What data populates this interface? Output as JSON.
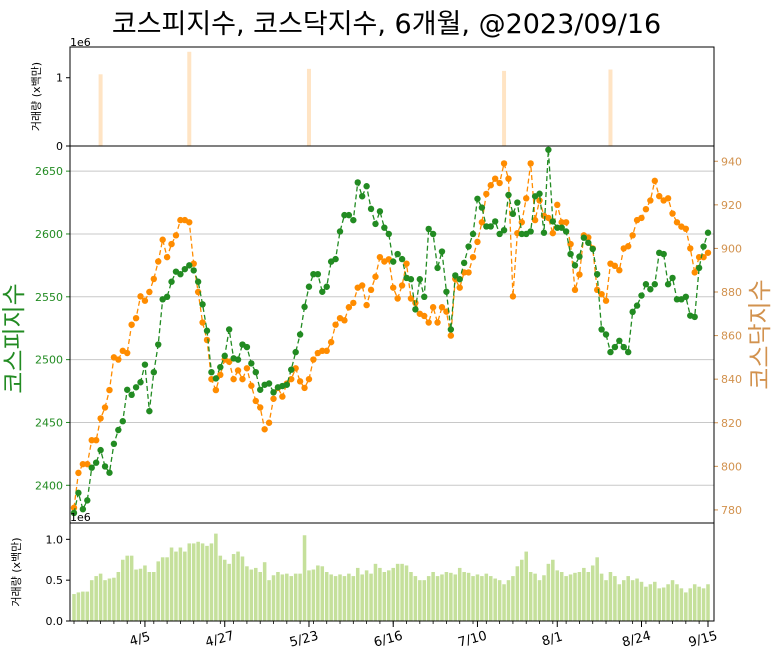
{
  "title": "코스피지수, 코스닥지수, 6개월, @2023/09/16",
  "colors": {
    "kospi": "#228B22",
    "kosdaq": "#FF8C00",
    "kosdaq_axis": "#D2924E",
    "vol_top": "#FFE4C4",
    "vol_bottom": "#C5E09B",
    "grid": "#C8C8C8"
  },
  "chart_data": [
    {
      "type": "bar",
      "panel": "top-volume",
      "ylabel": "거래량 (x백만)",
      "offset_label": "1e6",
      "ylim": [
        0,
        1.45
      ],
      "yticks": [
        0,
        1
      ],
      "x": [
        6,
        26,
        53,
        97,
        121
      ],
      "values": [
        1.05,
        1.38,
        1.13,
        1.1,
        1.12
      ]
    },
    {
      "type": "line",
      "panel": "main",
      "ylabel_left": "코스피지수",
      "ylabel_right": "코스닥지수",
      "ylim_left": [
        2370,
        2670
      ],
      "ylim_right": [
        774,
        947
      ],
      "yticks_left": [
        2400,
        2450,
        2500,
        2550,
        2600,
        2650
      ],
      "yticks_right": [
        780,
        800,
        820,
        840,
        860,
        880,
        900,
        920,
        940
      ],
      "grid": true,
      "series": [
        {
          "name": "코스피지수",
          "axis": "left",
          "values": [
            2378,
            2394,
            2381,
            2388,
            2414,
            2418,
            2428,
            2415,
            2410,
            2433,
            2444,
            2451,
            2476,
            2472,
            2478,
            2482,
            2496,
            2459,
            2490,
            2512,
            2548,
            2550,
            2562,
            2570,
            2568,
            2572,
            2575,
            2571,
            2562,
            2544,
            2523,
            2490,
            2485,
            2494,
            2503,
            2524,
            2501,
            2500,
            2512,
            2510,
            2497,
            2490,
            2476,
            2480,
            2481,
            2474,
            2478,
            2479,
            2480,
            2492,
            2506,
            2520,
            2542,
            2558,
            2568,
            2568,
            2554,
            2558,
            2578,
            2580,
            2602,
            2615,
            2615,
            2611,
            2641,
            2630,
            2638,
            2620,
            2608,
            2618,
            2605,
            2600,
            2578,
            2584,
            2580,
            2565,
            2564,
            2540,
            2564,
            2550,
            2604,
            2600,
            2573,
            2586,
            2554,
            2524,
            2567,
            2564,
            2577,
            2590,
            2600,
            2628,
            2621,
            2606,
            2606,
            2610,
            2600,
            2603,
            2631,
            2616,
            2625,
            2600,
            2600,
            2602,
            2630,
            2632,
            2601,
            2667,
            2610,
            2605,
            2605,
            2602,
            2584,
            2575,
            2582,
            2597,
            2593,
            2588,
            2568,
            2524,
            2520,
            2506,
            2510,
            2515,
            2510,
            2506,
            2538,
            2543,
            2551,
            2560,
            2556,
            2560,
            2585,
            2584,
            2560,
            2565,
            2548,
            2548,
            2550,
            2535,
            2534,
            2573,
            2590,
            2601
          ]
        },
        {
          "name": "코스닥지수",
          "axis": "right",
          "values": [
            781,
            797,
            801,
            801,
            812,
            812,
            822,
            827,
            835,
            850,
            849,
            853,
            852,
            865,
            868,
            878,
            876,
            880,
            886,
            894,
            904,
            896,
            902,
            906,
            913,
            913,
            912,
            893,
            880,
            866,
            858,
            840,
            835,
            842,
            849,
            848,
            840,
            844,
            840,
            845,
            837,
            830,
            827,
            817,
            820,
            831,
            836,
            832,
            838,
            840,
            845,
            839,
            836,
            840,
            849,
            852,
            853,
            853,
            857,
            865,
            868,
            867,
            873,
            875,
            882,
            883,
            874,
            881,
            887,
            896,
            894,
            895,
            882,
            877,
            883,
            893,
            877,
            875,
            870,
            869,
            866,
            873,
            866,
            873,
            871,
            860,
            886,
            882,
            889,
            889,
            896,
            903,
            912,
            925,
            929,
            932,
            930,
            939,
            932,
            878,
            907,
            912,
            923,
            939,
            913,
            922,
            915,
            914,
            907,
            920,
            912,
            912,
            902,
            881,
            888,
            906,
            905,
            900,
            881,
            879,
            876,
            893,
            892,
            890,
            900,
            901,
            906,
            913,
            914,
            918,
            922,
            931,
            924,
            922,
            923,
            916,
            912,
            910,
            909,
            900,
            889,
            896,
            896,
            898
          ]
        }
      ]
    },
    {
      "type": "bar",
      "panel": "bottom-volume",
      "ylabel": "거래량 (x백만)",
      "offset_label": "1e6",
      "ylim": [
        0,
        1.2
      ],
      "yticks": [
        0.0,
        0.5,
        1.0
      ],
      "xticks": [
        "4/5",
        "4/27",
        "5/23",
        "6/16",
        "7/10",
        "8/1",
        "8/24",
        "9/15"
      ],
      "values": [
        0.33,
        0.35,
        0.36,
        0.36,
        0.5,
        0.55,
        0.58,
        0.5,
        0.52,
        0.53,
        0.6,
        0.75,
        0.8,
        0.8,
        0.63,
        0.64,
        0.68,
        0.6,
        0.6,
        0.73,
        0.78,
        0.78,
        0.9,
        0.85,
        0.9,
        0.85,
        0.95,
        0.95,
        0.97,
        0.95,
        0.92,
        0.95,
        1.07,
        0.8,
        0.75,
        0.7,
        0.82,
        0.85,
        0.79,
        0.67,
        0.63,
        0.65,
        0.6,
        0.72,
        0.5,
        0.56,
        0.6,
        0.57,
        0.58,
        0.55,
        0.58,
        0.58,
        1.05,
        0.62,
        0.63,
        0.68,
        0.67,
        0.6,
        0.57,
        0.55,
        0.57,
        0.55,
        0.58,
        0.55,
        0.65,
        0.57,
        0.62,
        0.58,
        0.7,
        0.65,
        0.6,
        0.62,
        0.65,
        0.7,
        0.7,
        0.68,
        0.6,
        0.55,
        0.5,
        0.5,
        0.55,
        0.6,
        0.55,
        0.57,
        0.6,
        0.59,
        0.57,
        0.65,
        0.6,
        0.59,
        0.55,
        0.57,
        0.55,
        0.58,
        0.55,
        0.52,
        0.5,
        0.45,
        0.5,
        0.55,
        0.67,
        0.75,
        0.85,
        0.6,
        0.58,
        0.5,
        0.56,
        0.7,
        0.75,
        0.62,
        0.6,
        0.55,
        0.57,
        0.59,
        0.6,
        0.65,
        0.6,
        0.68,
        0.78,
        0.58,
        0.5,
        0.6,
        0.55,
        0.45,
        0.5,
        0.55,
        0.5,
        0.52,
        0.48,
        0.42,
        0.45,
        0.48,
        0.4,
        0.41,
        0.45,
        0.5,
        0.45,
        0.4,
        0.35,
        0.4,
        0.45,
        0.42,
        0.4,
        0.45
      ]
    }
  ]
}
